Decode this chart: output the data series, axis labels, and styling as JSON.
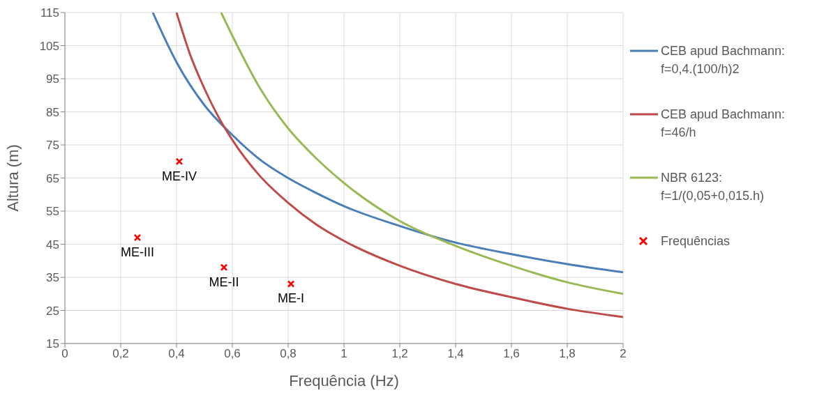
{
  "chart_data": {
    "type": "line",
    "xlabel": "Frequência (Hz)",
    "ylabel": "Altura (m)",
    "xlim": [
      0,
      2
    ],
    "ylim": [
      15,
      115
    ],
    "xticks": [
      0,
      {
        "value": 0.2,
        "label": "0,2"
      },
      {
        "value": 0.4,
        "label": "0,4"
      },
      {
        "value": 0.6,
        "label": "0,6"
      },
      {
        "value": 0.8,
        "label": "0,8"
      },
      1,
      {
        "value": 1.2,
        "label": "1,2"
      },
      {
        "value": 1.4,
        "label": "1,4"
      },
      {
        "value": 1.6,
        "label": "1,6"
      },
      {
        "value": 1.8,
        "label": "1,8"
      },
      2
    ],
    "yticks": [
      15,
      25,
      35,
      45,
      55,
      65,
      75,
      85,
      95,
      105,
      115
    ],
    "grid": true,
    "legend": "right",
    "line_style": "solid",
    "series": [
      {
        "name": "CEB apud Bachmann: f=0,4.(100/h)2",
        "color": "#4a7ebb",
        "marker": "none",
        "x": [
          0.315,
          0.4,
          0.5,
          0.6,
          0.7,
          0.8,
          0.9,
          1.0,
          1.2,
          1.4,
          1.6,
          1.8,
          2.0
        ],
        "values": [
          115,
          100,
          87,
          78,
          70.5,
          65,
          60.5,
          56.5,
          50.5,
          45.5,
          42,
          39,
          36.5
        ]
      },
      {
        "name": "CEB apud Bachmann: f=46/h",
        "color": "#be4b48",
        "marker": "none",
        "x": [
          0.4,
          0.45,
          0.5,
          0.55,
          0.6,
          0.7,
          0.8,
          0.9,
          1.0,
          1.2,
          1.4,
          1.6,
          1.8,
          2.0
        ],
        "values": [
          115,
          102,
          92,
          83.5,
          76.5,
          65.5,
          57.5,
          51,
          46,
          38.5,
          33,
          29,
          25.5,
          23
        ]
      },
      {
        "name": "NBR 6123: f=1/(0,05+0,015.h)",
        "color": "#98b954",
        "marker": "none",
        "x": [
          0.56,
          0.6,
          0.7,
          0.8,
          0.9,
          1.0,
          1.2,
          1.4,
          1.6,
          1.8,
          2.0
        ],
        "values": [
          115,
          108,
          92,
          80,
          71,
          63.5,
          52,
          44.5,
          38.5,
          33.5,
          30
        ]
      },
      {
        "name": "Frequências",
        "type": "scatter",
        "color": "#ff0000",
        "marker": "cross",
        "x": [
          0.81,
          0.57,
          0.26,
          0.41
        ],
        "values": [
          33,
          38,
          47,
          70
        ]
      }
    ],
    "annotations": [
      {
        "text": "ME-I",
        "x": 0.81,
        "y": 33
      },
      {
        "text": "ME-II",
        "x": 0.57,
        "y": 38
      },
      {
        "text": "ME-III",
        "x": 0.26,
        "y": 47
      },
      {
        "text": "ME-IV",
        "x": 0.41,
        "y": 70
      }
    ]
  }
}
